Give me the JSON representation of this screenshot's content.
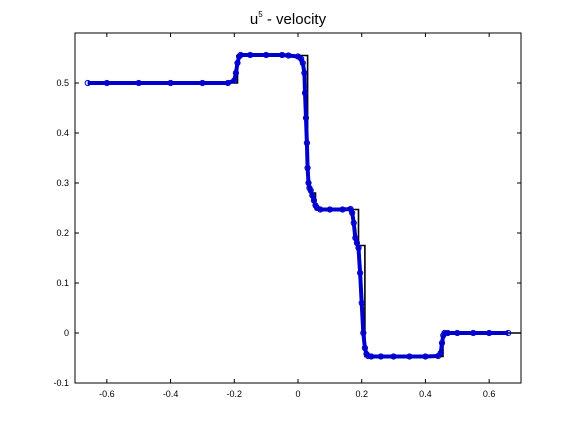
{
  "chart_data": {
    "type": "line",
    "title": "u",
    "title_superscript": "5",
    "title_suffix": " - velocity",
    "xlim": [
      -0.7,
      0.7
    ],
    "ylim": [
      -0.1,
      0.6
    ],
    "x_ticks": [
      -0.6,
      -0.4,
      -0.2,
      0,
      0.2,
      0.4,
      0.6
    ],
    "x_tick_labels": [
      "-0.6",
      "-0.4",
      "-0.2",
      "0",
      "0.2",
      "0.4",
      "0.6"
    ],
    "y_ticks": [
      -0.1,
      0,
      0.1,
      0.2,
      0.3,
      0.4,
      0.5
    ],
    "y_tick_labels": [
      "-0.1",
      "0",
      "0.1",
      "0.2",
      "0.3",
      "0.4",
      "0.5"
    ],
    "grid": false,
    "series": [
      {
        "style": "black-line",
        "color": "#000000",
        "x": [
          -0.66,
          -0.19,
          -0.19,
          0.03,
          0.03,
          0.038,
          0.038,
          0.055,
          0.055,
          0.19,
          0.19,
          0.21,
          0.21,
          0.455,
          0.455,
          0.7
        ],
        "y": [
          0.5,
          0.5,
          0.555,
          0.555,
          0.3,
          0.3,
          0.28,
          0.28,
          0.247,
          0.247,
          0.175,
          0.175,
          -0.047,
          -0.047,
          0.0,
          0.0
        ]
      },
      {
        "style": "blue-markers",
        "color": "#0000cc",
        "x": [
          -0.66,
          -0.6,
          -0.5,
          -0.4,
          -0.3,
          -0.22,
          -0.2,
          -0.195,
          -0.19,
          -0.185,
          -0.18,
          -0.15,
          -0.1,
          -0.05,
          -0.03,
          0.0,
          0.01,
          0.015,
          0.02,
          0.022,
          0.025,
          0.028,
          0.03,
          0.033,
          0.036,
          0.04,
          0.045,
          0.05,
          0.055,
          0.06,
          0.07,
          0.1,
          0.14,
          0.165,
          0.17,
          0.175,
          0.18,
          0.185,
          0.19,
          0.195,
          0.2,
          0.205,
          0.21,
          0.215,
          0.22,
          0.23,
          0.26,
          0.3,
          0.35,
          0.4,
          0.44,
          0.448,
          0.452,
          0.456,
          0.46,
          0.47,
          0.5,
          0.55,
          0.6,
          0.66
        ],
        "y": [
          0.5,
          0.5,
          0.5,
          0.5,
          0.5,
          0.5,
          0.505,
          0.52,
          0.54,
          0.553,
          0.556,
          0.556,
          0.556,
          0.556,
          0.555,
          0.553,
          0.548,
          0.54,
          0.52,
          0.48,
          0.43,
          0.38,
          0.33,
          0.3,
          0.29,
          0.285,
          0.275,
          0.265,
          0.255,
          0.25,
          0.247,
          0.247,
          0.247,
          0.248,
          0.24,
          0.22,
          0.19,
          0.18,
          0.17,
          0.12,
          0.06,
          0.0,
          -0.03,
          -0.042,
          -0.046,
          -0.047,
          -0.047,
          -0.047,
          -0.047,
          -0.047,
          -0.046,
          -0.04,
          -0.02,
          -0.005,
          0.0,
          0.0,
          0.0,
          0.0,
          0.0,
          0.0
        ]
      }
    ]
  }
}
